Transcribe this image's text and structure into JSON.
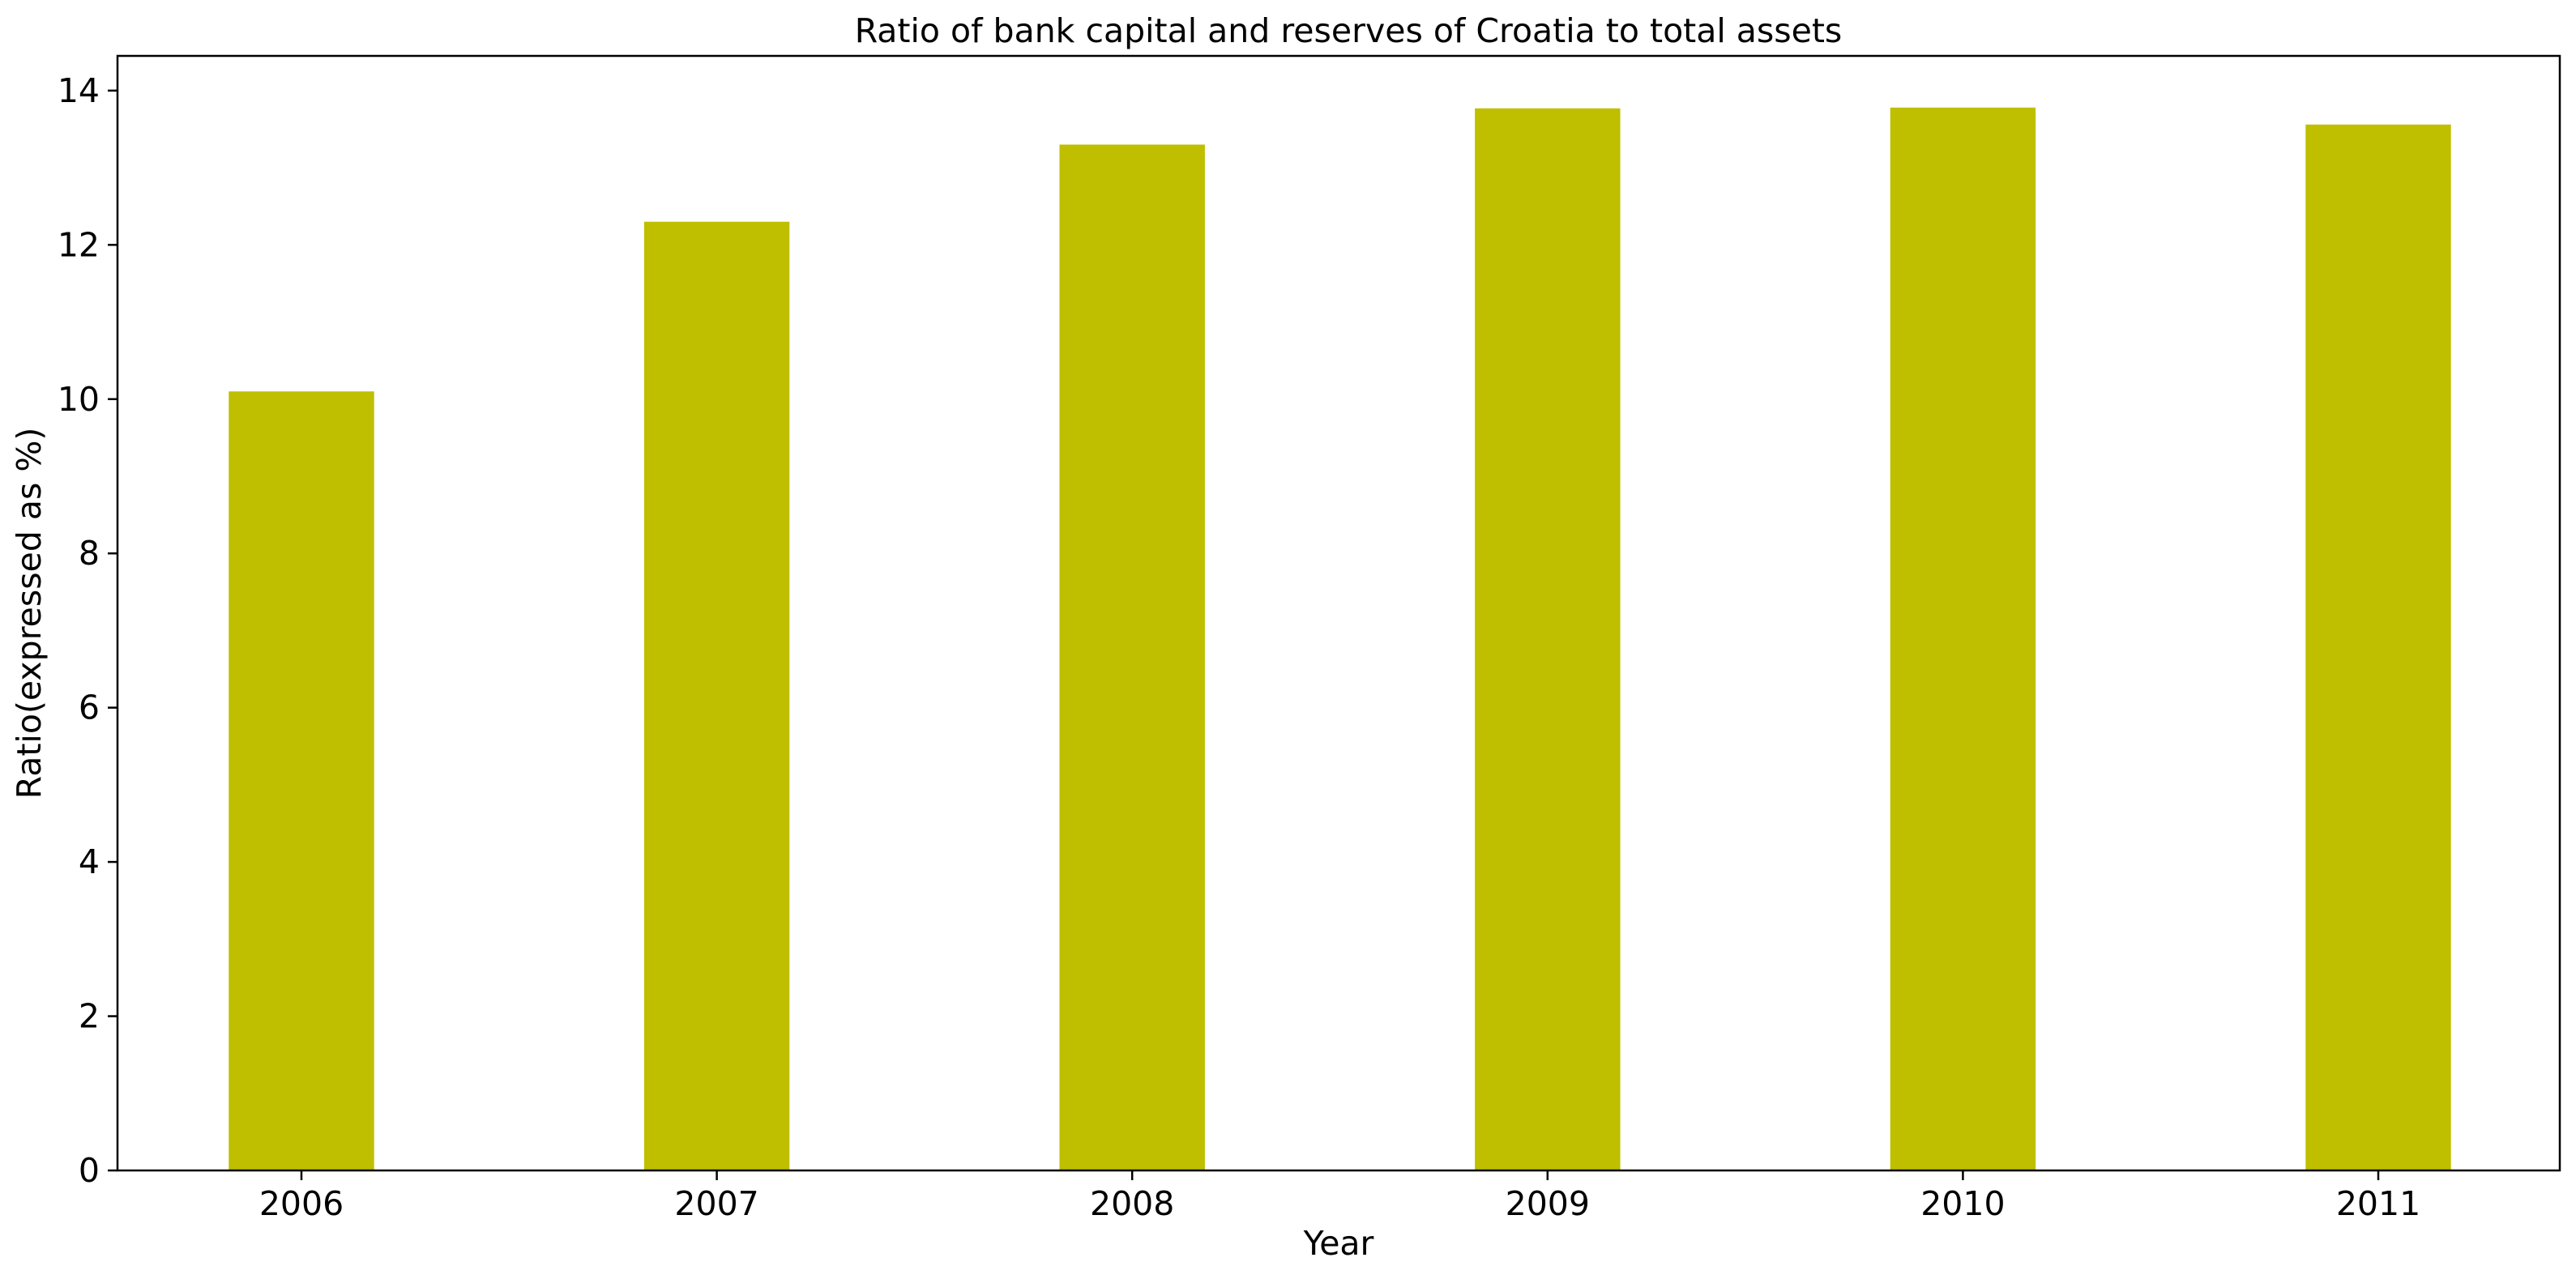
{
  "chart_data": {
    "type": "bar",
    "title": "Ratio of bank capital and reserves of Croatia to total assets",
    "xlabel": "Year",
    "ylabel": "Ratio(expressed as %)",
    "categories": [
      "2006",
      "2007",
      "2008",
      "2009",
      "2010",
      "2011"
    ],
    "values": [
      10.1,
      12.3,
      13.3,
      13.77,
      13.78,
      13.56
    ],
    "ylim": [
      0,
      14.45
    ],
    "yticks": [
      0,
      2,
      4,
      6,
      8,
      10,
      12,
      14
    ],
    "bar_color": "#bfbf00",
    "grid": false,
    "legend": "none"
  }
}
